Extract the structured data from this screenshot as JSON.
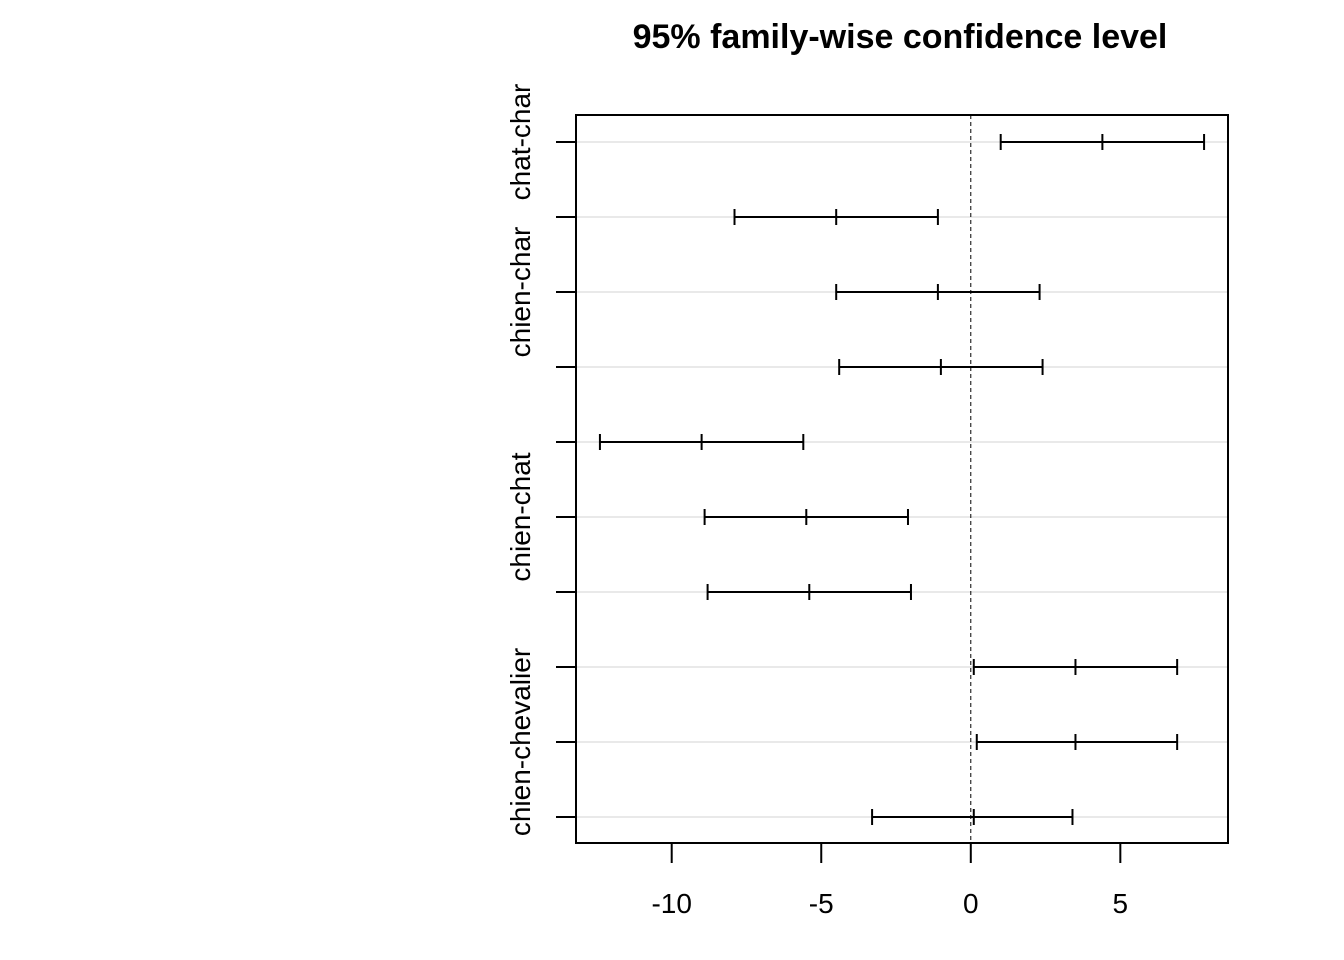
{
  "chart_data": {
    "type": "errorbar",
    "title": "95% family-wise confidence level",
    "xlabel": "",
    "ylabel": "",
    "xlim": [
      -13.2,
      8.6
    ],
    "x_ticks": [
      -10,
      -5,
      0,
      5
    ],
    "x_tick_labels": [
      "-10",
      "-5",
      "0",
      "5"
    ],
    "reference_line": 0,
    "grid": true,
    "y_tick_labels": [
      "chat-char",
      "",
      "chien-char",
      "",
      "",
      "chien-chat",
      "",
      "",
      "chien-chevalier",
      ""
    ],
    "intervals": [
      {
        "lwr": 1.0,
        "estimate": 4.4,
        "upr": 7.8
      },
      {
        "lwr": -7.9,
        "estimate": -4.5,
        "upr": -1.1
      },
      {
        "lwr": -4.5,
        "estimate": -1.1,
        "upr": 2.3
      },
      {
        "lwr": -4.4,
        "estimate": -1.0,
        "upr": 2.4
      },
      {
        "lwr": -12.4,
        "estimate": -9.0,
        "upr": -5.6
      },
      {
        "lwr": -8.9,
        "estimate": -5.5,
        "upr": -2.1
      },
      {
        "lwr": -8.8,
        "estimate": -5.4,
        "upr": -2.0
      },
      {
        "lwr": 0.1,
        "estimate": 3.5,
        "upr": 6.9
      },
      {
        "lwr": 0.2,
        "estimate": 3.5,
        "upr": 6.9
      },
      {
        "lwr": -3.3,
        "estimate": 0.1,
        "upr": 3.4
      }
    ]
  }
}
